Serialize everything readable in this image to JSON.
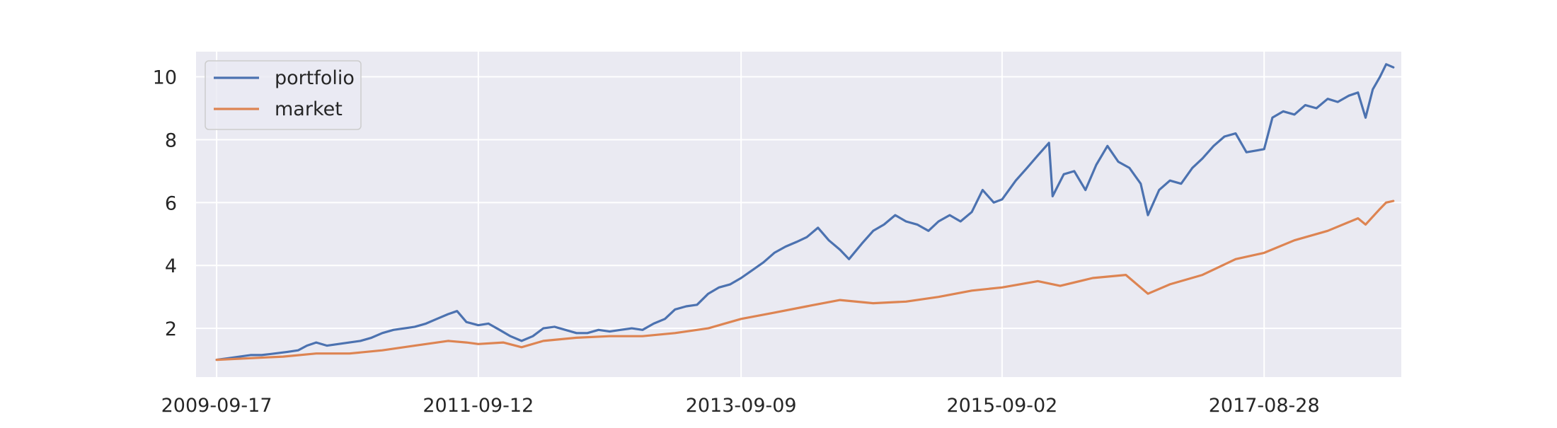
{
  "chart_data": {
    "type": "line",
    "title": "",
    "xlabel": "",
    "ylabel": "",
    "x_range": [
      "2009-07-22",
      "2018-09-12"
    ],
    "ylim": [
      0.45,
      10.8
    ],
    "x_ticks": [
      "2009-09-17",
      "2011-09-12",
      "2013-09-09",
      "2015-09-02",
      "2017-08-28"
    ],
    "y_ticks": [
      2,
      4,
      6,
      8,
      10
    ],
    "grid": true,
    "background": "#eaeaf2",
    "legend_position": "top-left",
    "series": [
      {
        "name": "portfolio",
        "color": "#4c72b0",
        "points": [
          [
            "2009-09-17",
            1.0
          ],
          [
            "2009-10-20",
            1.05
          ],
          [
            "2009-11-20",
            1.1
          ],
          [
            "2009-12-20",
            1.15
          ],
          [
            "2010-01-20",
            1.15
          ],
          [
            "2010-02-25",
            1.2
          ],
          [
            "2010-04-01",
            1.25
          ],
          [
            "2010-05-01",
            1.3
          ],
          [
            "2010-05-25",
            1.45
          ],
          [
            "2010-06-20",
            1.55
          ],
          [
            "2010-07-20",
            1.45
          ],
          [
            "2010-08-20",
            1.5
          ],
          [
            "2010-09-20",
            1.55
          ],
          [
            "2010-10-20",
            1.6
          ],
          [
            "2010-11-20",
            1.7
          ],
          [
            "2010-12-20",
            1.85
          ],
          [
            "2011-01-20",
            1.95
          ],
          [
            "2011-02-20",
            2.0
          ],
          [
            "2011-03-20",
            2.05
          ],
          [
            "2011-04-20",
            2.15
          ],
          [
            "2011-05-20",
            2.3
          ],
          [
            "2011-06-20",
            2.45
          ],
          [
            "2011-07-15",
            2.55
          ],
          [
            "2011-08-10",
            2.2
          ],
          [
            "2011-09-12",
            2.1
          ],
          [
            "2011-10-10",
            2.15
          ],
          [
            "2011-11-10",
            1.95
          ],
          [
            "2011-12-10",
            1.75
          ],
          [
            "2012-01-10",
            1.6
          ],
          [
            "2012-02-10",
            1.75
          ],
          [
            "2012-03-10",
            2.0
          ],
          [
            "2012-04-10",
            2.05
          ],
          [
            "2012-05-10",
            1.95
          ],
          [
            "2012-06-10",
            1.85
          ],
          [
            "2012-07-10",
            1.85
          ],
          [
            "2012-08-10",
            1.95
          ],
          [
            "2012-09-10",
            1.9
          ],
          [
            "2012-10-10",
            1.95
          ],
          [
            "2012-11-10",
            2.0
          ],
          [
            "2012-12-10",
            1.95
          ],
          [
            "2013-01-10",
            2.15
          ],
          [
            "2013-02-10",
            2.3
          ],
          [
            "2013-03-10",
            2.6
          ],
          [
            "2013-04-10",
            2.7
          ],
          [
            "2013-05-10",
            2.75
          ],
          [
            "2013-06-10",
            3.1
          ],
          [
            "2013-07-10",
            3.3
          ],
          [
            "2013-08-10",
            3.4
          ],
          [
            "2013-09-09",
            3.6
          ],
          [
            "2013-10-10",
            3.85
          ],
          [
            "2013-11-10",
            4.1
          ],
          [
            "2013-12-10",
            4.4
          ],
          [
            "2014-01-10",
            4.6
          ],
          [
            "2014-02-10",
            4.75
          ],
          [
            "2014-03-10",
            4.9
          ],
          [
            "2014-04-10",
            5.2
          ],
          [
            "2014-05-10",
            4.8
          ],
          [
            "2014-06-10",
            4.5
          ],
          [
            "2014-07-05",
            4.2
          ],
          [
            "2014-08-10",
            4.7
          ],
          [
            "2014-09-10",
            5.1
          ],
          [
            "2014-10-10",
            5.3
          ],
          [
            "2014-11-10",
            5.6
          ],
          [
            "2014-12-10",
            5.4
          ],
          [
            "2015-01-10",
            5.3
          ],
          [
            "2015-02-10",
            5.1
          ],
          [
            "2015-03-10",
            5.4
          ],
          [
            "2015-04-10",
            5.6
          ],
          [
            "2015-05-10",
            5.4
          ],
          [
            "2015-06-10",
            5.7
          ],
          [
            "2015-07-10",
            6.4
          ],
          [
            "2015-08-10",
            6.0
          ],
          [
            "2015-09-02",
            6.1
          ],
          [
            "2015-10-10",
            6.7
          ],
          [
            "2015-11-10",
            7.1
          ],
          [
            "2015-12-10",
            7.5
          ],
          [
            "2016-01-10",
            7.9
          ],
          [
            "2016-01-20",
            6.2
          ],
          [
            "2016-02-20",
            6.9
          ],
          [
            "2016-03-20",
            7.0
          ],
          [
            "2016-04-20",
            6.4
          ],
          [
            "2016-05-20",
            7.2
          ],
          [
            "2016-06-20",
            7.8
          ],
          [
            "2016-07-20",
            7.3
          ],
          [
            "2016-08-20",
            7.1
          ],
          [
            "2016-09-20",
            6.6
          ],
          [
            "2016-10-10",
            5.6
          ],
          [
            "2016-11-10",
            6.4
          ],
          [
            "2016-12-10",
            6.7
          ],
          [
            "2017-01-10",
            6.6
          ],
          [
            "2017-02-10",
            7.1
          ],
          [
            "2017-03-10",
            7.4
          ],
          [
            "2017-04-10",
            7.8
          ],
          [
            "2017-05-10",
            8.1
          ],
          [
            "2017-06-10",
            8.2
          ],
          [
            "2017-07-10",
            7.6
          ],
          [
            "2017-08-28",
            7.7
          ],
          [
            "2017-09-20",
            8.7
          ],
          [
            "2017-10-20",
            8.9
          ],
          [
            "2017-11-20",
            8.8
          ],
          [
            "2017-12-20",
            9.1
          ],
          [
            "2018-01-20",
            9.0
          ],
          [
            "2018-02-20",
            9.3
          ],
          [
            "2018-03-20",
            9.2
          ],
          [
            "2018-04-20",
            9.4
          ],
          [
            "2018-05-15",
            9.5
          ],
          [
            "2018-06-05",
            8.7
          ],
          [
            "2018-06-25",
            9.6
          ],
          [
            "2018-07-15",
            10.0
          ],
          [
            "2018-08-01",
            10.4
          ],
          [
            "2018-08-21",
            10.3
          ]
        ]
      },
      {
        "name": "market",
        "color": "#dd8452",
        "points": [
          [
            "2009-09-17",
            1.0
          ],
          [
            "2009-12-20",
            1.05
          ],
          [
            "2010-03-20",
            1.1
          ],
          [
            "2010-06-20",
            1.2
          ],
          [
            "2010-09-20",
            1.2
          ],
          [
            "2010-12-20",
            1.3
          ],
          [
            "2011-03-20",
            1.45
          ],
          [
            "2011-06-20",
            1.6
          ],
          [
            "2011-08-10",
            1.55
          ],
          [
            "2011-09-12",
            1.5
          ],
          [
            "2011-11-20",
            1.55
          ],
          [
            "2012-01-10",
            1.4
          ],
          [
            "2012-03-10",
            1.6
          ],
          [
            "2012-06-10",
            1.7
          ],
          [
            "2012-09-10",
            1.75
          ],
          [
            "2012-12-10",
            1.75
          ],
          [
            "2013-03-10",
            1.85
          ],
          [
            "2013-06-10",
            2.0
          ],
          [
            "2013-09-09",
            2.3
          ],
          [
            "2013-12-10",
            2.5
          ],
          [
            "2014-03-10",
            2.7
          ],
          [
            "2014-06-10",
            2.9
          ],
          [
            "2014-09-10",
            2.8
          ],
          [
            "2014-12-10",
            2.85
          ],
          [
            "2015-03-10",
            3.0
          ],
          [
            "2015-06-10",
            3.2
          ],
          [
            "2015-09-02",
            3.3
          ],
          [
            "2015-12-10",
            3.5
          ],
          [
            "2016-02-10",
            3.35
          ],
          [
            "2016-05-10",
            3.6
          ],
          [
            "2016-08-10",
            3.7
          ],
          [
            "2016-10-10",
            3.1
          ],
          [
            "2016-12-10",
            3.4
          ],
          [
            "2017-03-10",
            3.7
          ],
          [
            "2017-06-10",
            4.2
          ],
          [
            "2017-08-28",
            4.4
          ],
          [
            "2017-11-20",
            4.8
          ],
          [
            "2018-02-20",
            5.1
          ],
          [
            "2018-05-15",
            5.5
          ],
          [
            "2018-06-05",
            5.3
          ],
          [
            "2018-07-15",
            5.8
          ],
          [
            "2018-08-01",
            6.0
          ],
          [
            "2018-08-21",
            6.05
          ]
        ]
      }
    ]
  }
}
